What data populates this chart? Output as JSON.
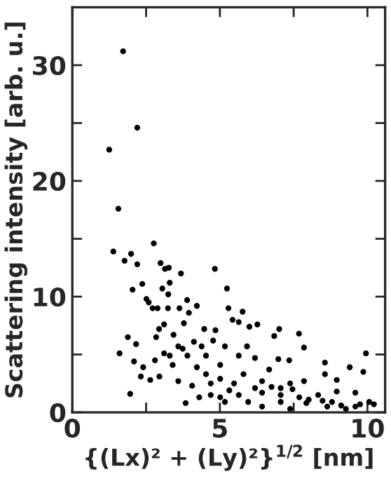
{
  "chart_data": {
    "type": "scatter",
    "xlabel": "{(Lx)² + (Ly)²}$^{1/2}$ [nm]",
    "ylabel": "Scattering intensity [arb. u.]",
    "xlim": [
      0,
      10.6
    ],
    "ylim": [
      0,
      35
    ],
    "xticks": [
      0,
      {
        "value": 2.5,
        "label": null
      },
      5,
      {
        "value": 7.5,
        "label": null
      },
      10
    ],
    "yticks": [
      0,
      {
        "value": 5,
        "label": null
      },
      10,
      {
        "value": 15,
        "label": null
      },
      20,
      {
        "value": 25,
        "label": null
      },
      30
    ],
    "grid": false,
    "legend": false,
    "marker": "circle",
    "series": [
      {
        "color": "#000000",
        "x": [
          1.72,
          2.2,
          1.25,
          1.56,
          1.39,
          2.76,
          1.99,
          1.77,
          2.2,
          2.99,
          3.14,
          3.27,
          3.68,
          4.83,
          2.37,
          3.3,
          3.05,
          2.04,
          3.25,
          5.24,
          2.51,
          2.59,
          3.89,
          4.22,
          2.72,
          2.89,
          3.24,
          3.63,
          3.95,
          5.29,
          5.77,
          5.43,
          5.64,
          3.11,
          2.94,
          3.78,
          6.27,
          6.0,
          1.88,
          2.84,
          3.43,
          4.47,
          4.85,
          7.01,
          6.84,
          7.68,
          2.16,
          4.12,
          3.59,
          5.17,
          5.92,
          7.85,
          1.6,
          9.95,
          3.11,
          3.9,
          4.53,
          5.64,
          6.19,
          6.98,
          7.35,
          8.56,
          2.09,
          2.8,
          2.4,
          3.4,
          4.22,
          5.01,
          9.86,
          9.4,
          8.96,
          8.56,
          2.32,
          2.95,
          2.64,
          3.59,
          4.06,
          4.69,
          5.48,
          6.43,
          7.38,
          7.85,
          1.96,
          3.84,
          4.3,
          5.01,
          5.64,
          6.43,
          7.06,
          7.69,
          8.33,
          8.96,
          9.59,
          10.06,
          10.22,
          6.43,
          7.38,
          8.64,
          9.27,
          7.06,
          5.96,
          4.69,
          5.17,
          7.93,
          8.8,
          6.75,
          7.06,
          7.46,
          6.19,
          6.67,
          5.8,
          4.53,
          5.01,
          5.32,
          4.38,
          4.77,
          3.74,
          3.3,
          8.01,
          8.48,
          9.75,
          9.11,
          9.59
        ],
        "values": [
          31.2,
          24.6,
          22.7,
          17.6,
          13.9,
          14.6,
          13.7,
          13.1,
          12.8,
          12.9,
          12.4,
          12.5,
          12.0,
          12.4,
          11.1,
          11.2,
          10.7,
          10.6,
          10.2,
          10.7,
          9.8,
          9.5,
          9.7,
          9.2,
          9.0,
          9.0,
          9.0,
          9.0,
          8.6,
          9.0,
          8.7,
          8.0,
          7.8,
          7.6,
          7.2,
          7.7,
          7.6,
          7.4,
          6.5,
          6.5,
          6.7,
          7.2,
          7.1,
          7.2,
          6.6,
          6.8,
          5.9,
          6.1,
          5.7,
          5.7,
          5.7,
          5.6,
          5.1,
          5.1,
          5.1,
          4.9,
          4.9,
          4.9,
          4.7,
          4.6,
          4.5,
          4.3,
          4.4,
          4.5,
          3.9,
          4.1,
          3.9,
          4.1,
          3.5,
          3.9,
          2.8,
          3.3,
          3.1,
          3.1,
          2.8,
          2.7,
          2.3,
          2.5,
          2.5,
          2.7,
          2.5,
          2.7,
          1.6,
          0.8,
          1.3,
          1.3,
          1.5,
          1.7,
          1.5,
          1.3,
          1.5,
          1.8,
          1.7,
          0.9,
          0.7,
          0.5,
          0.3,
          0.5,
          0.3,
          0.9,
          0.9,
          1.5,
          0.9,
          0.8,
          0.9,
          2.2,
          2.1,
          2.0,
          2.1,
          3.7,
          3.3,
          3.3,
          2.9,
          1.9,
          5.7,
          6.2,
          5.5,
          4.9,
          1.1,
          1.0,
          0.7,
          0.6,
          0.5
        ]
      }
    ]
  }
}
